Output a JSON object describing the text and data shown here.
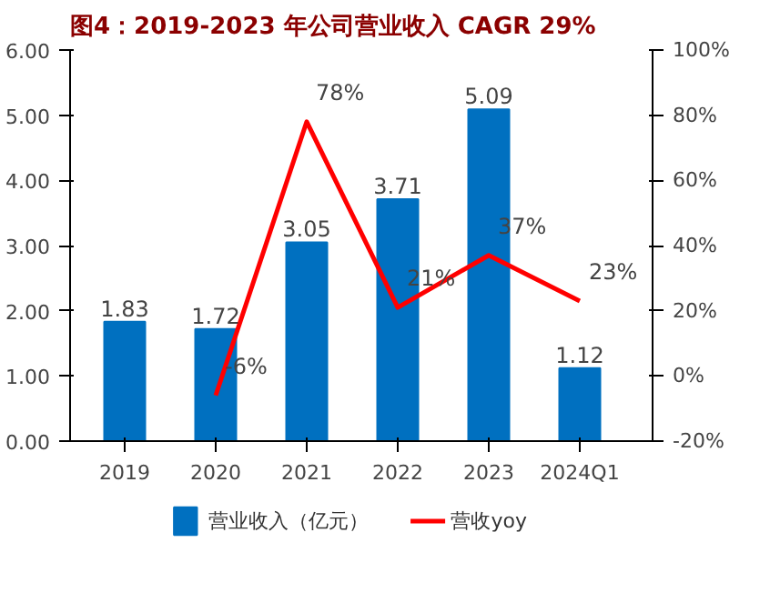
{
  "chart_data": {
    "type": "bar",
    "title": "图4：2019-2023 年公司营业收入 CAGR 29%",
    "categories": [
      "2019",
      "2020",
      "2021",
      "2022",
      "2023",
      "2024Q1"
    ],
    "series": [
      {
        "name": "营业收入（亿元）",
        "color": "#0070c0",
        "values": [
          1.83,
          1.72,
          3.05,
          3.71,
          5.09,
          1.12
        ]
      },
      {
        "name": "营收yoy",
        "type": "line",
        "axis": "y2",
        "color": "#ff0000",
        "values": [
          null,
          -6,
          78,
          21,
          37,
          23
        ],
        "value_labels": [
          null,
          "-6%",
          "78%",
          "21%",
          "37%",
          "23%"
        ]
      }
    ],
    "ylim": [
      0,
      6
    ],
    "yticks": [
      {
        "value": 0,
        "label": "0.00"
      },
      {
        "value": 1,
        "label": "1.00"
      },
      {
        "value": 2,
        "label": "2.00"
      },
      {
        "value": 3,
        "label": "3.00"
      },
      {
        "value": 4,
        "label": "4.00"
      },
      {
        "value": 5,
        "label": "5.00"
      },
      {
        "value": 6,
        "label": "6.00"
      }
    ],
    "y2lim": [
      -20,
      100
    ],
    "y2ticks": [
      {
        "value": -20,
        "label": "-20%"
      },
      {
        "value": 0,
        "label": "0%"
      },
      {
        "value": 20,
        "label": "20%"
      },
      {
        "value": 40,
        "label": "40%"
      },
      {
        "value": 60,
        "label": "60%"
      },
      {
        "value": 80,
        "label": "80%"
      },
      {
        "value": 100,
        "label": "100%"
      }
    ],
    "data_labels": true,
    "grid": false,
    "legend": "bottom"
  }
}
